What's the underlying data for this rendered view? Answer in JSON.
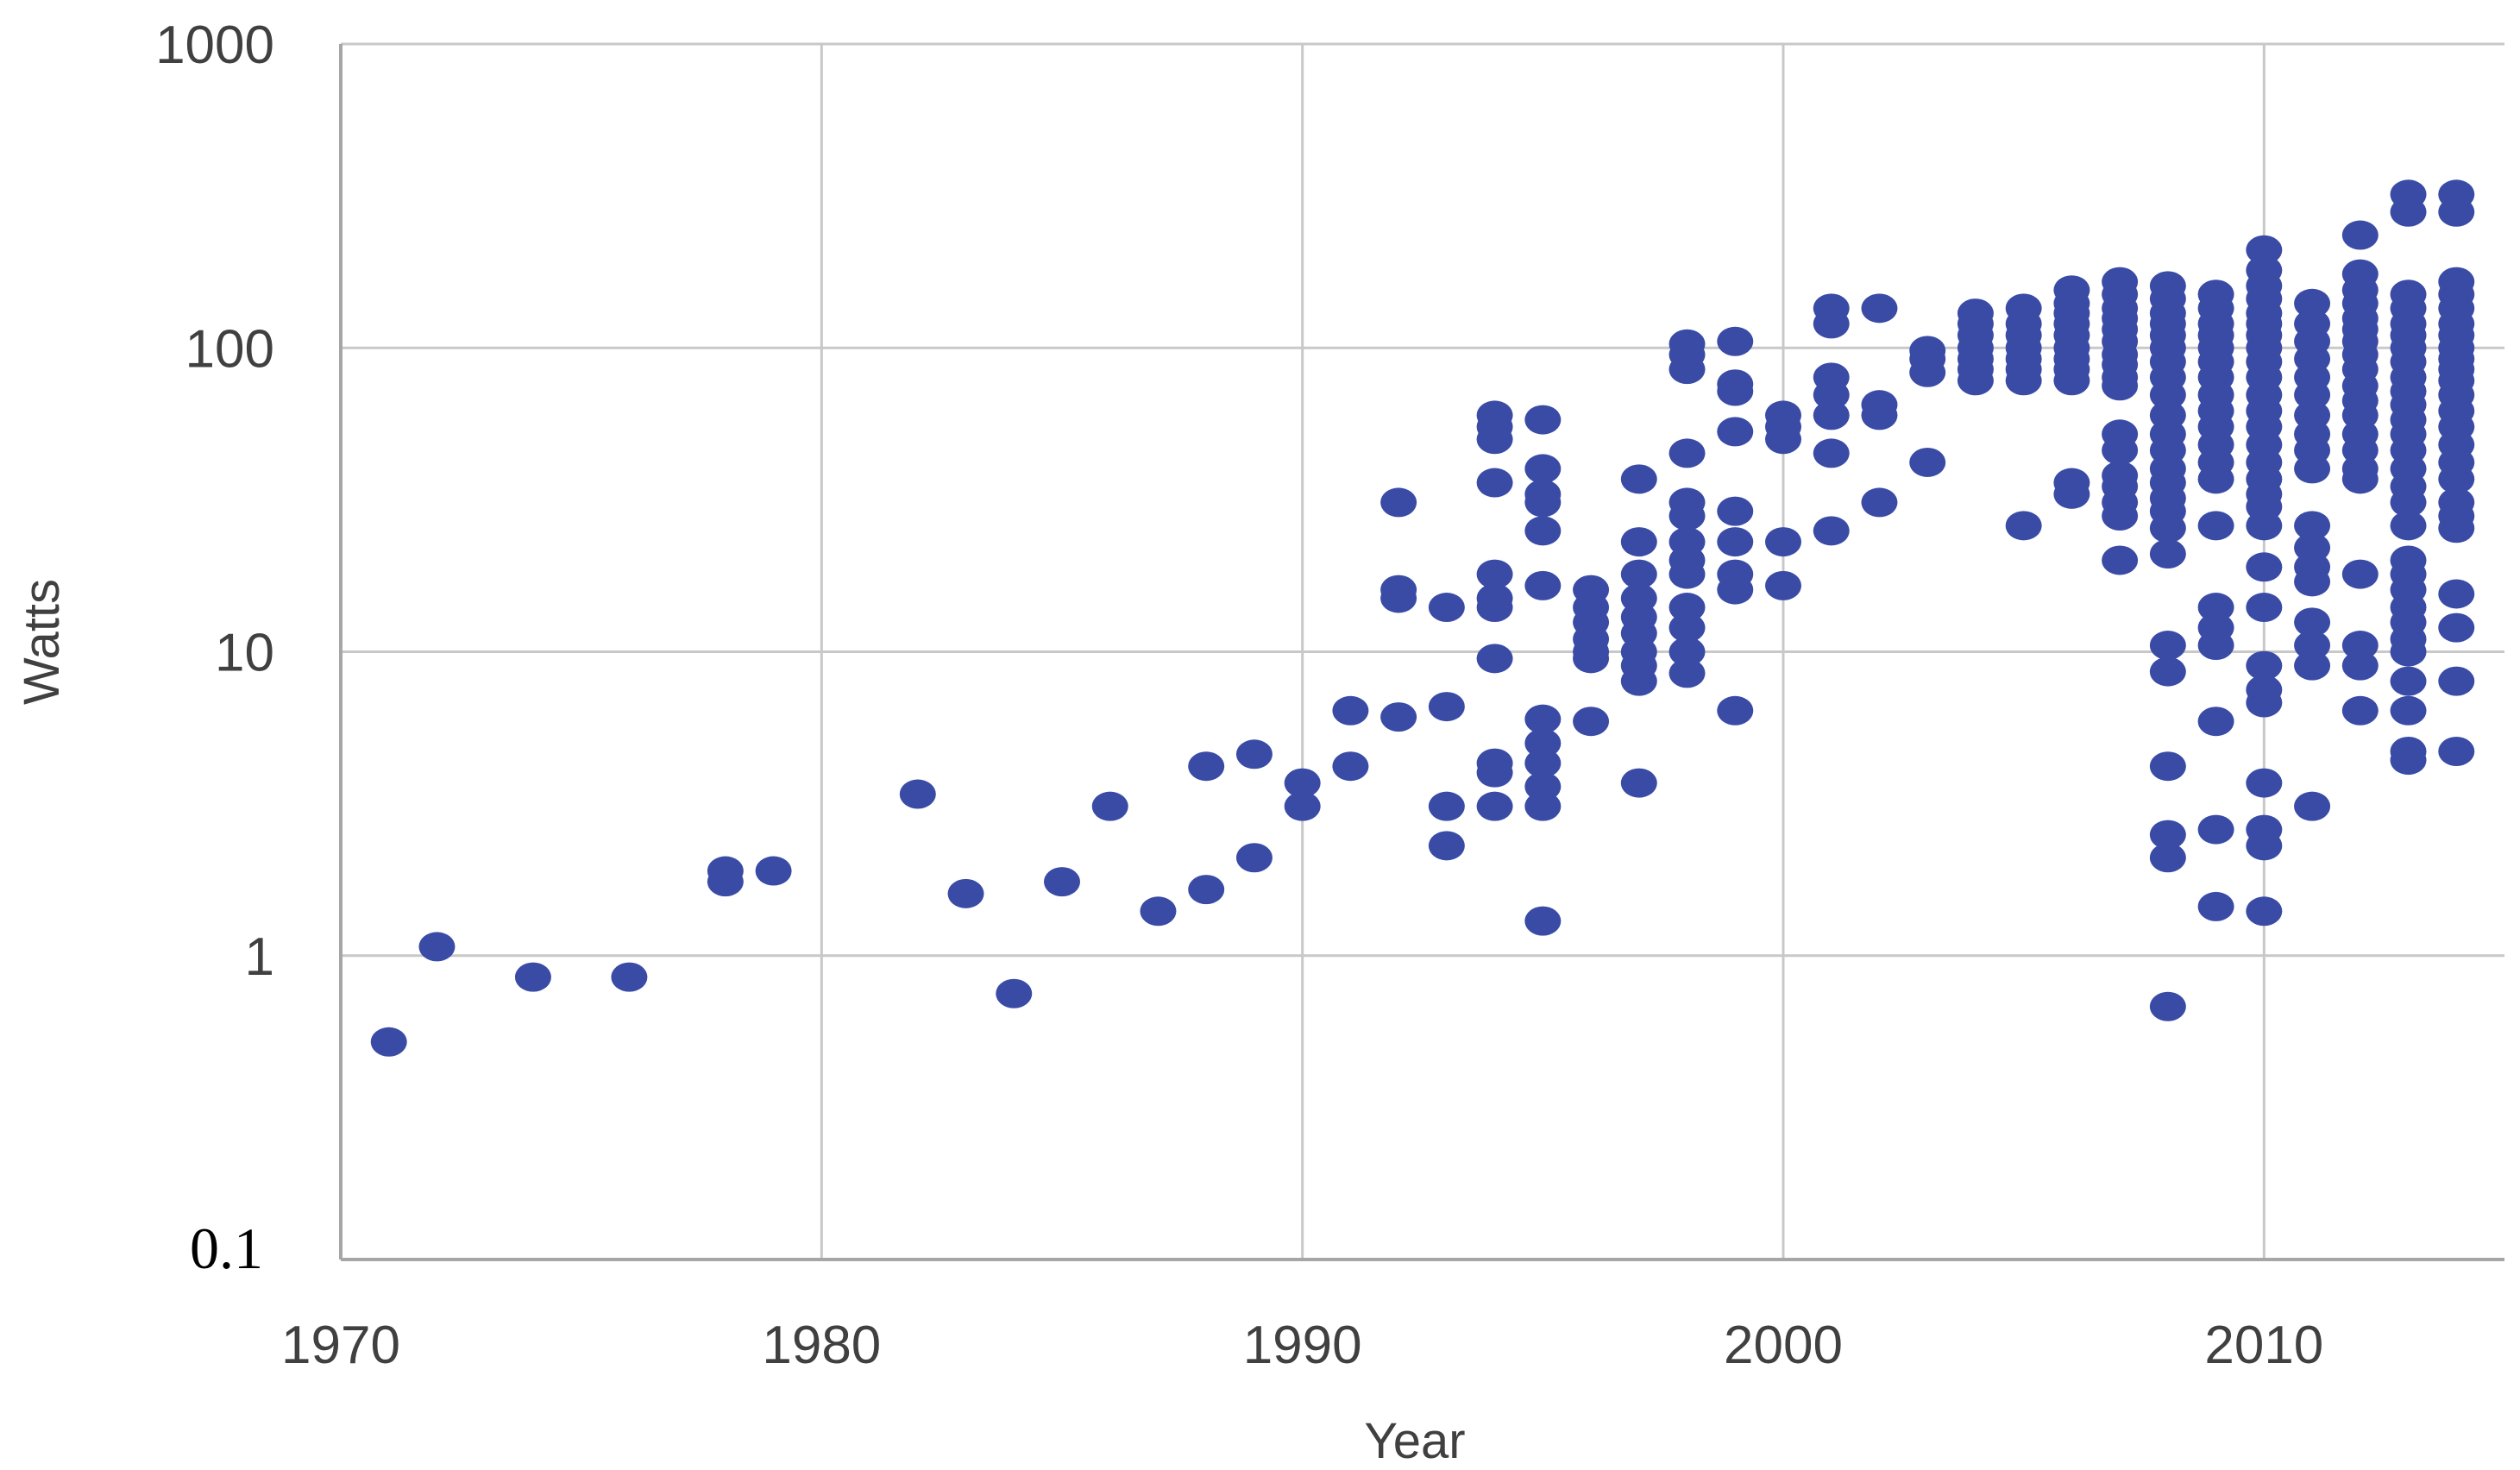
{
  "chart_data": {
    "type": "scatter",
    "title": "",
    "xlabel": "Year",
    "ylabel": "Watts",
    "x_scale": "linear",
    "y_scale": "log",
    "xlim": [
      1970,
      2015
    ],
    "ylim": [
      0.1,
      1000
    ],
    "x_ticks": [
      "1970",
      "1980",
      "1990",
      "2000",
      "2010"
    ],
    "y_ticks": [
      "1000",
      "100",
      "10",
      "1",
      "0.1"
    ],
    "grid": true,
    "legend": "none",
    "marker_color": "#3a4ba6",
    "gridline_color": "#c8c8c8",
    "axis_color": "#a6a6a6",
    "points": [
      [
        1971,
        0.52
      ],
      [
        1972,
        1.07
      ],
      [
        1974,
        0.85
      ],
      [
        1976,
        0.85
      ],
      [
        1978,
        1.75
      ],
      [
        1978,
        1.9
      ],
      [
        1979,
        1.9
      ],
      [
        1982,
        3.4
      ],
      [
        1983,
        1.6
      ],
      [
        1984,
        0.75
      ],
      [
        1985,
        1.75
      ],
      [
        1986,
        3.1
      ],
      [
        1987,
        1.4
      ],
      [
        1988,
        4.2
      ],
      [
        1988,
        1.65
      ],
      [
        1989,
        4.6
      ],
      [
        1989,
        2.1
      ],
      [
        1990,
        3.7
      ],
      [
        1990,
        3.1
      ],
      [
        1991,
        6.4
      ],
      [
        1991,
        4.2
      ],
      [
        1992,
        31
      ],
      [
        1992,
        16
      ],
      [
        1992,
        15
      ],
      [
        1992,
        6.1
      ],
      [
        1993,
        14
      ],
      [
        1993,
        6.6
      ],
      [
        1993,
        3.1
      ],
      [
        1993,
        2.3
      ],
      [
        1994,
        60
      ],
      [
        1994,
        55
      ],
      [
        1994,
        50
      ],
      [
        1994,
        36
      ],
      [
        1994,
        18
      ],
      [
        1994,
        15
      ],
      [
        1994,
        14
      ],
      [
        1994,
        9.5
      ],
      [
        1994,
        4.3
      ],
      [
        1994,
        4.0
      ],
      [
        1994,
        3.1
      ],
      [
        1995,
        58
      ],
      [
        1995,
        40
      ],
      [
        1995,
        33
      ],
      [
        1995,
        31
      ],
      [
        1995,
        25
      ],
      [
        1995,
        16.5
      ],
      [
        1995,
        6.0
      ],
      [
        1995,
        5.0
      ],
      [
        1995,
        4.3
      ],
      [
        1995,
        3.6
      ],
      [
        1995,
        3.1
      ],
      [
        1995,
        1.3
      ],
      [
        1996,
        16
      ],
      [
        1996,
        14
      ],
      [
        1996,
        12.5
      ],
      [
        1996,
        11
      ],
      [
        1996,
        10
      ],
      [
        1996,
        9.5
      ],
      [
        1996,
        5.9
      ],
      [
        1997,
        37
      ],
      [
        1997,
        23
      ],
      [
        1997,
        18
      ],
      [
        1997,
        15
      ],
      [
        1997,
        13
      ],
      [
        1997,
        11.5
      ],
      [
        1997,
        10
      ],
      [
        1997,
        9
      ],
      [
        1997,
        8
      ],
      [
        1997,
        3.7
      ],
      [
        1998,
        103
      ],
      [
        1998,
        95
      ],
      [
        1998,
        85
      ],
      [
        1998,
        45
      ],
      [
        1998,
        31
      ],
      [
        1998,
        28
      ],
      [
        1998,
        23
      ],
      [
        1998,
        20
      ],
      [
        1998,
        18
      ],
      [
        1998,
        14
      ],
      [
        1998,
        12
      ],
      [
        1998,
        10
      ],
      [
        1998,
        8.5
      ],
      [
        1999,
        105
      ],
      [
        1999,
        76
      ],
      [
        1999,
        72
      ],
      [
        1999,
        53
      ],
      [
        1999,
        29
      ],
      [
        1999,
        23
      ],
      [
        1999,
        18
      ],
      [
        1999,
        16
      ],
      [
        1999,
        6.4
      ],
      [
        2000,
        60
      ],
      [
        2000,
        55
      ],
      [
        2000,
        50
      ],
      [
        2000,
        23
      ],
      [
        2000,
        16.5
      ],
      [
        2001,
        135
      ],
      [
        2001,
        120
      ],
      [
        2001,
        80
      ],
      [
        2001,
        70
      ],
      [
        2001,
        60
      ],
      [
        2001,
        45
      ],
      [
        2001,
        25
      ],
      [
        2002,
        135
      ],
      [
        2002,
        65
      ],
      [
        2002,
        60
      ],
      [
        2002,
        31
      ],
      [
        2003,
        98
      ],
      [
        2003,
        92
      ],
      [
        2003,
        83
      ],
      [
        2003,
        42
      ],
      [
        2004,
        130
      ],
      [
        2004,
        120
      ],
      [
        2004,
        110
      ],
      [
        2004,
        100
      ],
      [
        2004,
        92
      ],
      [
        2004,
        85
      ],
      [
        2004,
        78
      ],
      [
        2005,
        135
      ],
      [
        2005,
        120
      ],
      [
        2005,
        110
      ],
      [
        2005,
        100
      ],
      [
        2005,
        92
      ],
      [
        2005,
        85
      ],
      [
        2005,
        78
      ],
      [
        2005,
        26
      ],
      [
        2006,
        155
      ],
      [
        2006,
        140
      ],
      [
        2006,
        130
      ],
      [
        2006,
        120
      ],
      [
        2006,
        110
      ],
      [
        2006,
        100
      ],
      [
        2006,
        92
      ],
      [
        2006,
        85
      ],
      [
        2006,
        78
      ],
      [
        2006,
        36
      ],
      [
        2006,
        33
      ],
      [
        2007,
        165
      ],
      [
        2007,
        150
      ],
      [
        2007,
        135
      ],
      [
        2007,
        125
      ],
      [
        2007,
        115
      ],
      [
        2007,
        105
      ],
      [
        2007,
        95
      ],
      [
        2007,
        88
      ],
      [
        2007,
        80
      ],
      [
        2007,
        75
      ],
      [
        2007,
        52
      ],
      [
        2007,
        46
      ],
      [
        2007,
        38
      ],
      [
        2007,
        35
      ],
      [
        2007,
        31
      ],
      [
        2007,
        28
      ],
      [
        2007,
        20
      ],
      [
        2008,
        160
      ],
      [
        2008,
        145
      ],
      [
        2008,
        130
      ],
      [
        2008,
        120
      ],
      [
        2008,
        110
      ],
      [
        2008,
        100
      ],
      [
        2008,
        90
      ],
      [
        2008,
        80
      ],
      [
        2008,
        70
      ],
      [
        2008,
        60
      ],
      [
        2008,
        52
      ],
      [
        2008,
        46
      ],
      [
        2008,
        40
      ],
      [
        2008,
        36
      ],
      [
        2008,
        32
      ],
      [
        2008,
        29
      ],
      [
        2008,
        25.5
      ],
      [
        2008,
        21
      ],
      [
        2008,
        10.5
      ],
      [
        2008,
        8.6
      ],
      [
        2008,
        4.2
      ],
      [
        2008,
        2.5
      ],
      [
        2008,
        2.1
      ],
      [
        2008,
        0.68
      ],
      [
        2009,
        150
      ],
      [
        2009,
        135
      ],
      [
        2009,
        120
      ],
      [
        2009,
        110
      ],
      [
        2009,
        100
      ],
      [
        2009,
        90
      ],
      [
        2009,
        80
      ],
      [
        2009,
        70
      ],
      [
        2009,
        62
      ],
      [
        2009,
        55
      ],
      [
        2009,
        48
      ],
      [
        2009,
        42
      ],
      [
        2009,
        37
      ],
      [
        2009,
        26
      ],
      [
        2009,
        14
      ],
      [
        2009,
        12
      ],
      [
        2009,
        10.5
      ],
      [
        2009,
        5.9
      ],
      [
        2009,
        2.6
      ],
      [
        2009,
        1.45
      ],
      [
        2010,
        210
      ],
      [
        2010,
        180
      ],
      [
        2010,
        160
      ],
      [
        2010,
        145
      ],
      [
        2010,
        130
      ],
      [
        2010,
        120
      ],
      [
        2010,
        110
      ],
      [
        2010,
        100
      ],
      [
        2010,
        90
      ],
      [
        2010,
        80
      ],
      [
        2010,
        70
      ],
      [
        2010,
        62
      ],
      [
        2010,
        55
      ],
      [
        2010,
        48
      ],
      [
        2010,
        42
      ],
      [
        2010,
        37
      ],
      [
        2010,
        33
      ],
      [
        2010,
        30
      ],
      [
        2010,
        26
      ],
      [
        2010,
        19
      ],
      [
        2010,
        14
      ],
      [
        2010,
        9
      ],
      [
        2010,
        7.5
      ],
      [
        2010,
        6.8
      ],
      [
        2010,
        3.7
      ],
      [
        2010,
        2.6
      ],
      [
        2010,
        2.3
      ],
      [
        2010,
        1.4
      ],
      [
        2011,
        140
      ],
      [
        2011,
        120
      ],
      [
        2011,
        105
      ],
      [
        2011,
        92
      ],
      [
        2011,
        80
      ],
      [
        2011,
        70
      ],
      [
        2011,
        60
      ],
      [
        2011,
        52
      ],
      [
        2011,
        46
      ],
      [
        2011,
        40
      ],
      [
        2011,
        26
      ],
      [
        2011,
        22
      ],
      [
        2011,
        19
      ],
      [
        2011,
        17
      ],
      [
        2011,
        12.5
      ],
      [
        2011,
        10.5
      ],
      [
        2011,
        9
      ],
      [
        2011,
        3.1
      ],
      [
        2012,
        235
      ],
      [
        2012,
        175
      ],
      [
        2012,
        155
      ],
      [
        2012,
        140
      ],
      [
        2012,
        125
      ],
      [
        2012,
        115
      ],
      [
        2012,
        105
      ],
      [
        2012,
        95
      ],
      [
        2012,
        85
      ],
      [
        2012,
        75
      ],
      [
        2012,
        67
      ],
      [
        2012,
        60
      ],
      [
        2012,
        52
      ],
      [
        2012,
        46
      ],
      [
        2012,
        40
      ],
      [
        2012,
        37
      ],
      [
        2012,
        18
      ],
      [
        2012,
        10.5
      ],
      [
        2012,
        9
      ],
      [
        2012,
        6.4
      ],
      [
        2013,
        320
      ],
      [
        2013,
        280
      ],
      [
        2013,
        150
      ],
      [
        2013,
        135
      ],
      [
        2013,
        120
      ],
      [
        2013,
        110
      ],
      [
        2013,
        100
      ],
      [
        2013,
        90
      ],
      [
        2013,
        80
      ],
      [
        2013,
        72
      ],
      [
        2013,
        65
      ],
      [
        2013,
        58
      ],
      [
        2013,
        52
      ],
      [
        2013,
        46
      ],
      [
        2013,
        40
      ],
      [
        2013,
        35
      ],
      [
        2013,
        31
      ],
      [
        2013,
        26
      ],
      [
        2013,
        20
      ],
      [
        2013,
        18
      ],
      [
        2013,
        16
      ],
      [
        2013,
        14
      ],
      [
        2013,
        12.5
      ],
      [
        2013,
        11
      ],
      [
        2013,
        10
      ],
      [
        2013,
        8
      ],
      [
        2013,
        6.4
      ],
      [
        2013,
        4.7
      ],
      [
        2013,
        4.4
      ],
      [
        2014,
        320
      ],
      [
        2014,
        280
      ],
      [
        2014,
        165
      ],
      [
        2014,
        150
      ],
      [
        2014,
        135
      ],
      [
        2014,
        120
      ],
      [
        2014,
        110
      ],
      [
        2014,
        100
      ],
      [
        2014,
        92
      ],
      [
        2014,
        85
      ],
      [
        2014,
        78
      ],
      [
        2014,
        70
      ],
      [
        2014,
        62
      ],
      [
        2014,
        55
      ],
      [
        2014,
        48
      ],
      [
        2014,
        42
      ],
      [
        2014,
        37
      ],
      [
        2014,
        31
      ],
      [
        2014,
        28
      ],
      [
        2014,
        25.5
      ],
      [
        2014,
        15.5
      ],
      [
        2014,
        12
      ],
      [
        2014,
        8
      ],
      [
        2014,
        4.7
      ]
    ]
  }
}
